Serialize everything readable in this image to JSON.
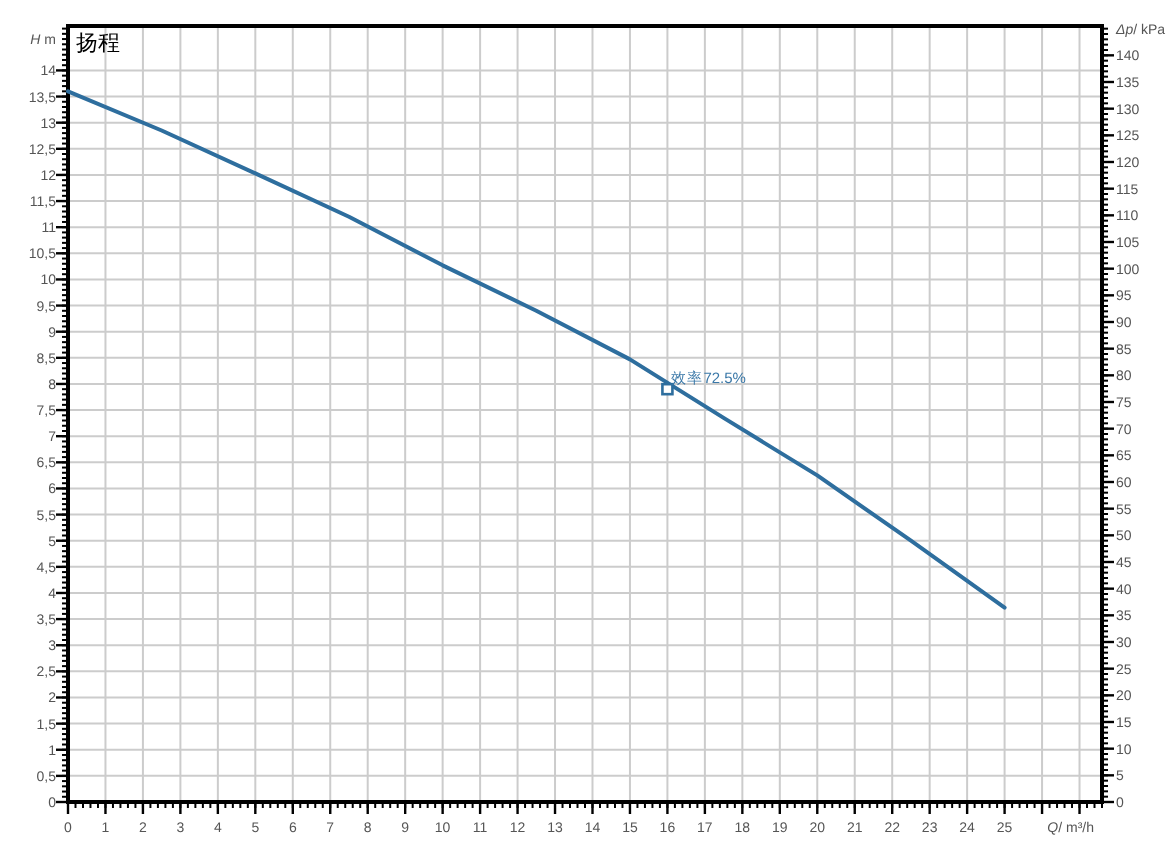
{
  "chart_data": {
    "type": "line",
    "title": "扬程",
    "xlabel": "*Q*/ m³/h",
    "ylabel": "*H* m",
    "y2label": "*Δp*/ kPa",
    "x": [
      0,
      2.5,
      5,
      7.5,
      10,
      12.5,
      15,
      17.5,
      20,
      22.5,
      25
    ],
    "series": [
      {
        "color": "#2e6e9e",
        "values": [
          13.6,
          12.85,
          12.03,
          11.2,
          10.27,
          9.4,
          8.47,
          7.35,
          6.25,
          5.0,
          3.72
        ]
      },
      {
        "type": "scatter",
        "marker": "square",
        "color": "#2e6e9e",
        "x": [
          16
        ],
        "values": [
          7.9
        ]
      }
    ],
    "annotations": [
      {
        "text": "效率72.5%",
        "x": 16,
        "y": 7.9
      }
    ],
    "xlim": [
      0,
      27.6
    ],
    "ylim": [
      0,
      14.85
    ],
    "y2lim": [
      0,
      145.5
    ],
    "xticks": [
      0,
      1,
      2,
      3,
      4,
      5,
      6,
      7,
      8,
      9,
      10,
      11,
      12,
      13,
      14,
      15,
      16,
      17,
      18,
      19,
      20,
      21,
      22,
      23,
      24,
      25,
      {
        "value": 26,
        "label": null
      },
      {
        "value": 27,
        "label": null
      }
    ],
    "yticks": [
      0,
      {
        "value": 0.5,
        "label": "0,5"
      },
      1,
      {
        "value": 1.5,
        "label": "1,5"
      },
      2,
      {
        "value": 2.5,
        "label": "2,5"
      },
      3,
      {
        "value": 3.5,
        "label": "3,5"
      },
      4,
      {
        "value": 4.5,
        "label": "4,5"
      },
      5,
      {
        "value": 5.5,
        "label": "5,5"
      },
      6,
      {
        "value": 6.5,
        "label": "6,5"
      },
      7,
      {
        "value": 7.5,
        "label": "7,5"
      },
      8,
      {
        "value": 8.5,
        "label": "8,5"
      },
      9,
      {
        "value": 9.5,
        "label": "9,5"
      },
      10,
      {
        "value": 10.5,
        "label": "10,5"
      },
      11,
      {
        "value": 11.5,
        "label": "11,5"
      },
      12,
      {
        "value": 12.5,
        "label": "12,5"
      },
      13,
      {
        "value": 13.5,
        "label": "13,5"
      },
      14
    ],
    "y2ticks": [
      0,
      5,
      10,
      15,
      20,
      25,
      30,
      35,
      40,
      45,
      50,
      55,
      60,
      65,
      70,
      75,
      80,
      85,
      90,
      95,
      100,
      105,
      110,
      115,
      120,
      125,
      130,
      135,
      140
    ],
    "grid": true,
    "marker": "none",
    "line_style": "solid"
  }
}
